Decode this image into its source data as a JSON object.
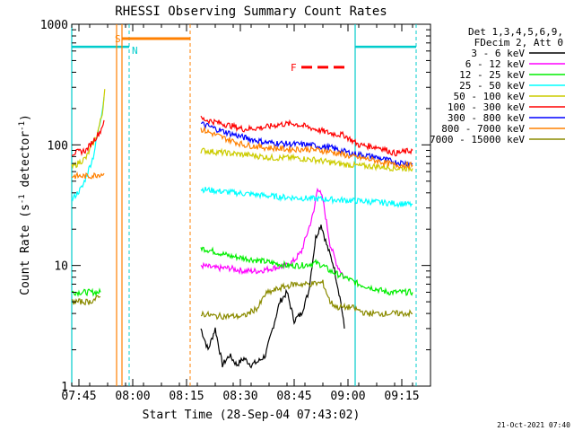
{
  "chart_data": {
    "type": "line",
    "title": "RHESSI Observing Summary Count Rates",
    "xlabel": "Start Time (28-Sep-04 07:43:02)",
    "ylabel": "Count Rate (s",
    "ylabel_sup1": "-1",
    "ylabel_mid": " detector",
    "ylabel_sup2": "-1",
    "ylabel_end": ")",
    "xlim_min": [
      0,
      100
    ],
    "ylim": [
      1,
      1000
    ],
    "yscale": "log",
    "x_ticks": [
      {
        "label": "07:45",
        "t": 2
      },
      {
        "label": "08:00",
        "t": 17
      },
      {
        "label": "08:15",
        "t": 32
      },
      {
        "label": "08:30",
        "t": 47
      },
      {
        "label": "08:45",
        "t": 62
      },
      {
        "label": "09:00",
        "t": 77
      },
      {
        "label": "09:15",
        "t": 92
      }
    ],
    "y_ticks": [
      {
        "label": "1",
        "v": 1
      },
      {
        "label": "10",
        "v": 10
      },
      {
        "label": "100",
        "v": 100
      },
      {
        "label": "1000",
        "v": 1000
      }
    ],
    "legend_header": [
      "Det 1,3,4,5,6,9,",
      "FDecim 2, Att 0"
    ],
    "series": [
      {
        "name": "3 - 6 keV",
        "color": "#000000",
        "segments": [
          [
            [
              36,
              3
            ],
            [
              38,
              2
            ],
            [
              40,
              3
            ],
            [
              42,
              1.5
            ],
            [
              44,
              1.8
            ],
            [
              46,
              1.5
            ],
            [
              48,
              1.7
            ],
            [
              50,
              1.5
            ],
            [
              52,
              1.6
            ],
            [
              54,
              1.8
            ],
            [
              56,
              3
            ],
            [
              58,
              5
            ],
            [
              60,
              6
            ],
            [
              62,
              3.5
            ],
            [
              64,
              4
            ],
            [
              66,
              6
            ],
            [
              68,
              17
            ],
            [
              69.5,
              22
            ],
            [
              71,
              15
            ],
            [
              73,
              10
            ],
            [
              75,
              5
            ],
            [
              76,
              3
            ]
          ]
        ]
      },
      {
        "name": "6 - 12 keV",
        "color": "#ff00ff",
        "segments": [
          [
            [
              36,
              10
            ],
            [
              40,
              9.5
            ],
            [
              44,
              9.5
            ],
            [
              48,
              9
            ],
            [
              52,
              9
            ],
            [
              56,
              9.5
            ],
            [
              60,
              10
            ],
            [
              62,
              11
            ],
            [
              64,
              13
            ],
            [
              66,
              20
            ],
            [
              67.5,
              28
            ],
            [
              68.5,
              45
            ],
            [
              70,
              35
            ],
            [
              72,
              15
            ],
            [
              74,
              10
            ],
            [
              76,
              8
            ]
          ]
        ]
      },
      {
        "name": "12 - 25 keV",
        "color": "#00ee00",
        "segments": [
          [
            [
              0,
              6
            ],
            [
              8,
              6
            ]
          ],
          [
            [
              36,
              14
            ],
            [
              40,
              13
            ],
            [
              44,
              12
            ],
            [
              48,
              11.5
            ],
            [
              52,
              11
            ],
            [
              56,
              10.5
            ],
            [
              60,
              10
            ],
            [
              64,
              10
            ],
            [
              68,
              10.5
            ],
            [
              70,
              10
            ],
            [
              72,
              9
            ],
            [
              76,
              8
            ],
            [
              80,
              7
            ],
            [
              84,
              6.5
            ],
            [
              88,
              6
            ],
            [
              95,
              6
            ]
          ]
        ]
      },
      {
        "name": "25 - 50 keV",
        "color": "#00ffff",
        "segments": [
          [
            [
              0,
              35
            ],
            [
              3,
              45
            ],
            [
              6,
              80
            ],
            [
              8,
              160
            ],
            [
              9,
              250
            ]
          ],
          [
            [
              36,
              43
            ],
            [
              42,
              41
            ],
            [
              50,
              39
            ],
            [
              58,
              37
            ],
            [
              66,
              36
            ],
            [
              74,
              35
            ],
            [
              82,
              34
            ],
            [
              88,
              33
            ],
            [
              95,
              32
            ]
          ]
        ]
      },
      {
        "name": "50 - 100 keV",
        "color": "#cccc00",
        "segments": [
          [
            [
              0,
              65
            ],
            [
              4,
              78
            ],
            [
              7,
              120
            ],
            [
              8.5,
              180
            ],
            [
              9.2,
              290
            ]
          ],
          [
            [
              36,
              90
            ],
            [
              44,
              85
            ],
            [
              50,
              82
            ],
            [
              56,
              78
            ],
            [
              62,
              78
            ],
            [
              68,
              75
            ],
            [
              74,
              70
            ],
            [
              80,
              67
            ],
            [
              86,
              66
            ],
            [
              90,
              64
            ],
            [
              95,
              64
            ]
          ]
        ]
      },
      {
        "name": "100 - 300 keV",
        "color": "#ff0000",
        "segments": [
          [
            [
              0,
              85
            ],
            [
              4,
              90
            ],
            [
              8,
              130
            ],
            [
              9,
              160
            ]
          ],
          [
            [
              36,
              165
            ],
            [
              42,
              150
            ],
            [
              48,
              135
            ],
            [
              54,
              140
            ],
            [
              58,
              148
            ],
            [
              62,
              150
            ],
            [
              66,
              140
            ],
            [
              72,
              125
            ],
            [
              76,
              120
            ],
            [
              80,
              100
            ],
            [
              86,
              95
            ],
            [
              90,
              85
            ],
            [
              95,
              90
            ]
          ]
        ]
      },
      {
        "name": "300 - 800 keV",
        "color": "#0000ff",
        "segments": [
          [
            [
              36,
              150
            ],
            [
              42,
              130
            ],
            [
              48,
              115
            ],
            [
              54,
              105
            ],
            [
              60,
              102
            ],
            [
              66,
              100
            ],
            [
              72,
              95
            ],
            [
              78,
              85
            ],
            [
              84,
              80
            ],
            [
              90,
              72
            ],
            [
              95,
              70
            ]
          ]
        ]
      },
      {
        "name": "800 - 7000 keV",
        "color": "#ff8000",
        "segments": [
          [
            [
              0,
              55
            ],
            [
              5,
              55
            ],
            [
              9,
              58
            ]
          ],
          [
            [
              36,
              135
            ],
            [
              42,
              115
            ],
            [
              48,
              100
            ],
            [
              54,
              95
            ],
            [
              60,
              92
            ],
            [
              66,
              92
            ],
            [
              72,
              88
            ],
            [
              78,
              80
            ],
            [
              84,
              75
            ],
            [
              90,
              68
            ],
            [
              95,
              68
            ]
          ]
        ]
      },
      {
        "name": "7000 - 15000 keV",
        "color": "#8b8b00",
        "segments": [
          [
            [
              0,
              5
            ],
            [
              5,
              5
            ],
            [
              8,
              5.5
            ]
          ],
          [
            [
              36,
              4
            ],
            [
              40,
              3.8
            ],
            [
              44,
              3.8
            ],
            [
              48,
              3.8
            ],
            [
              52,
              4.5
            ],
            [
              54,
              5.8
            ],
            [
              58,
              6.5
            ],
            [
              62,
              7
            ],
            [
              66,
              7
            ],
            [
              70,
              7.2
            ],
            [
              72,
              5
            ],
            [
              74,
              4.5
            ],
            [
              78,
              4.5
            ],
            [
              82,
              4
            ],
            [
              86,
              4
            ],
            [
              90,
              4
            ],
            [
              95,
              4
            ]
          ]
        ]
      }
    ],
    "markers": [
      {
        "label": "S",
        "color": "#ff8000",
        "t": 13.5
      },
      {
        "label": "N",
        "color": "#00cccc",
        "t": 16
      }
    ],
    "flare_label": "F",
    "flare_color": "#ff0000",
    "timestamp": "21-Oct-2021 07:40"
  }
}
